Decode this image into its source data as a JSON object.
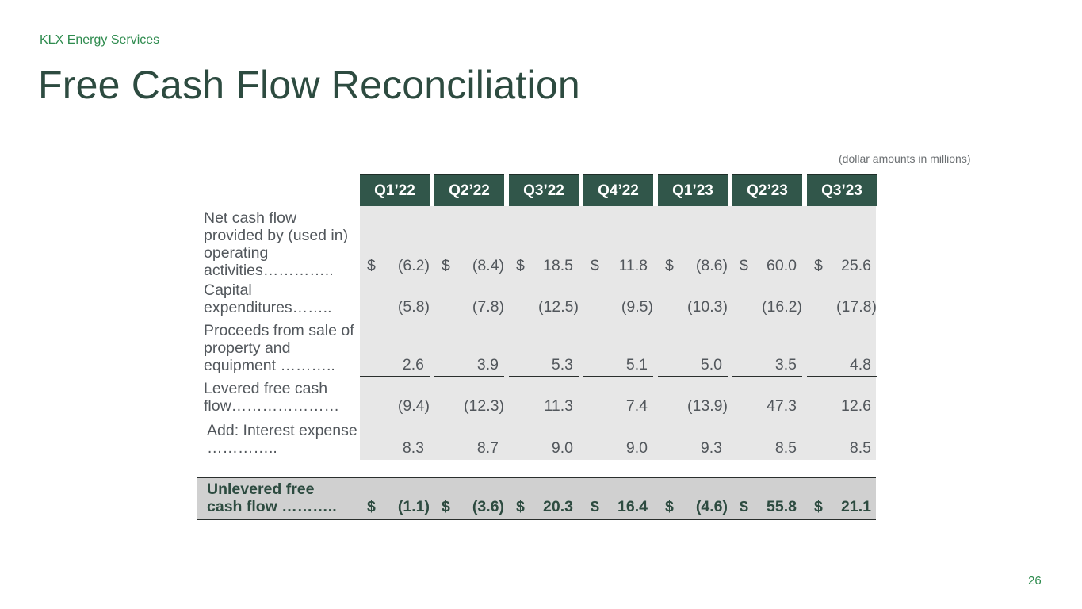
{
  "header": {
    "company": "KLX Energy Services",
    "title": "Free Cash Flow Reconciliation",
    "note": "(dollar amounts in millions)"
  },
  "table": {
    "columns": [
      "Q1’22",
      "Q2’22",
      "Q3’22",
      "Q4’22",
      "Q1’23",
      "Q2’23",
      "Q3’23"
    ],
    "currency_symbol": "$",
    "rows": [
      {
        "label": "Net cash flow provided by (used in) operating activities…………..",
        "values": [
          "(6.2)",
          "(8.4)",
          "18.5",
          "11.8",
          "(8.6)",
          "60.0",
          "25.6"
        ],
        "dollar": true
      },
      {
        "label": "Capital expenditures……..",
        "values": [
          "(5.8)",
          "(7.8)",
          "(12.5)",
          "(9.5)",
          "(10.3)",
          "(16.2)",
          "(17.8)"
        ],
        "dollar": false
      },
      {
        "label": "Proceeds from sale of property and equipment ………..",
        "values": [
          "2.6",
          "3.9",
          "5.3",
          "5.1",
          "5.0",
          "3.5",
          "4.8"
        ],
        "dollar": false
      },
      {
        "label": "Levered free cash flow…………………",
        "values": [
          "(9.4)",
          "(12.3)",
          "11.3",
          "7.4",
          "(13.9)",
          "47.3",
          "12.6"
        ],
        "dollar": false
      },
      {
        "label": "Add: Interest expense …………..",
        "values": [
          "8.3",
          "8.7",
          "9.0",
          "9.0",
          "9.3",
          "8.5",
          "8.5"
        ],
        "dollar": false
      }
    ],
    "total": {
      "label": "Unlevered free cash flow ………..",
      "values": [
        "(1.1)",
        "(3.6)",
        "20.3",
        "16.4",
        "(4.6)",
        "55.8",
        "21.1"
      ],
      "dollar": true
    }
  },
  "footer": {
    "page_number": "26"
  },
  "colors": {
    "accent_green": "#2e8b4e",
    "title_green": "#2d4b40",
    "header_fill": "#31564a",
    "row_band": "#e7e7e7",
    "total_band": "#d0d0d0"
  }
}
